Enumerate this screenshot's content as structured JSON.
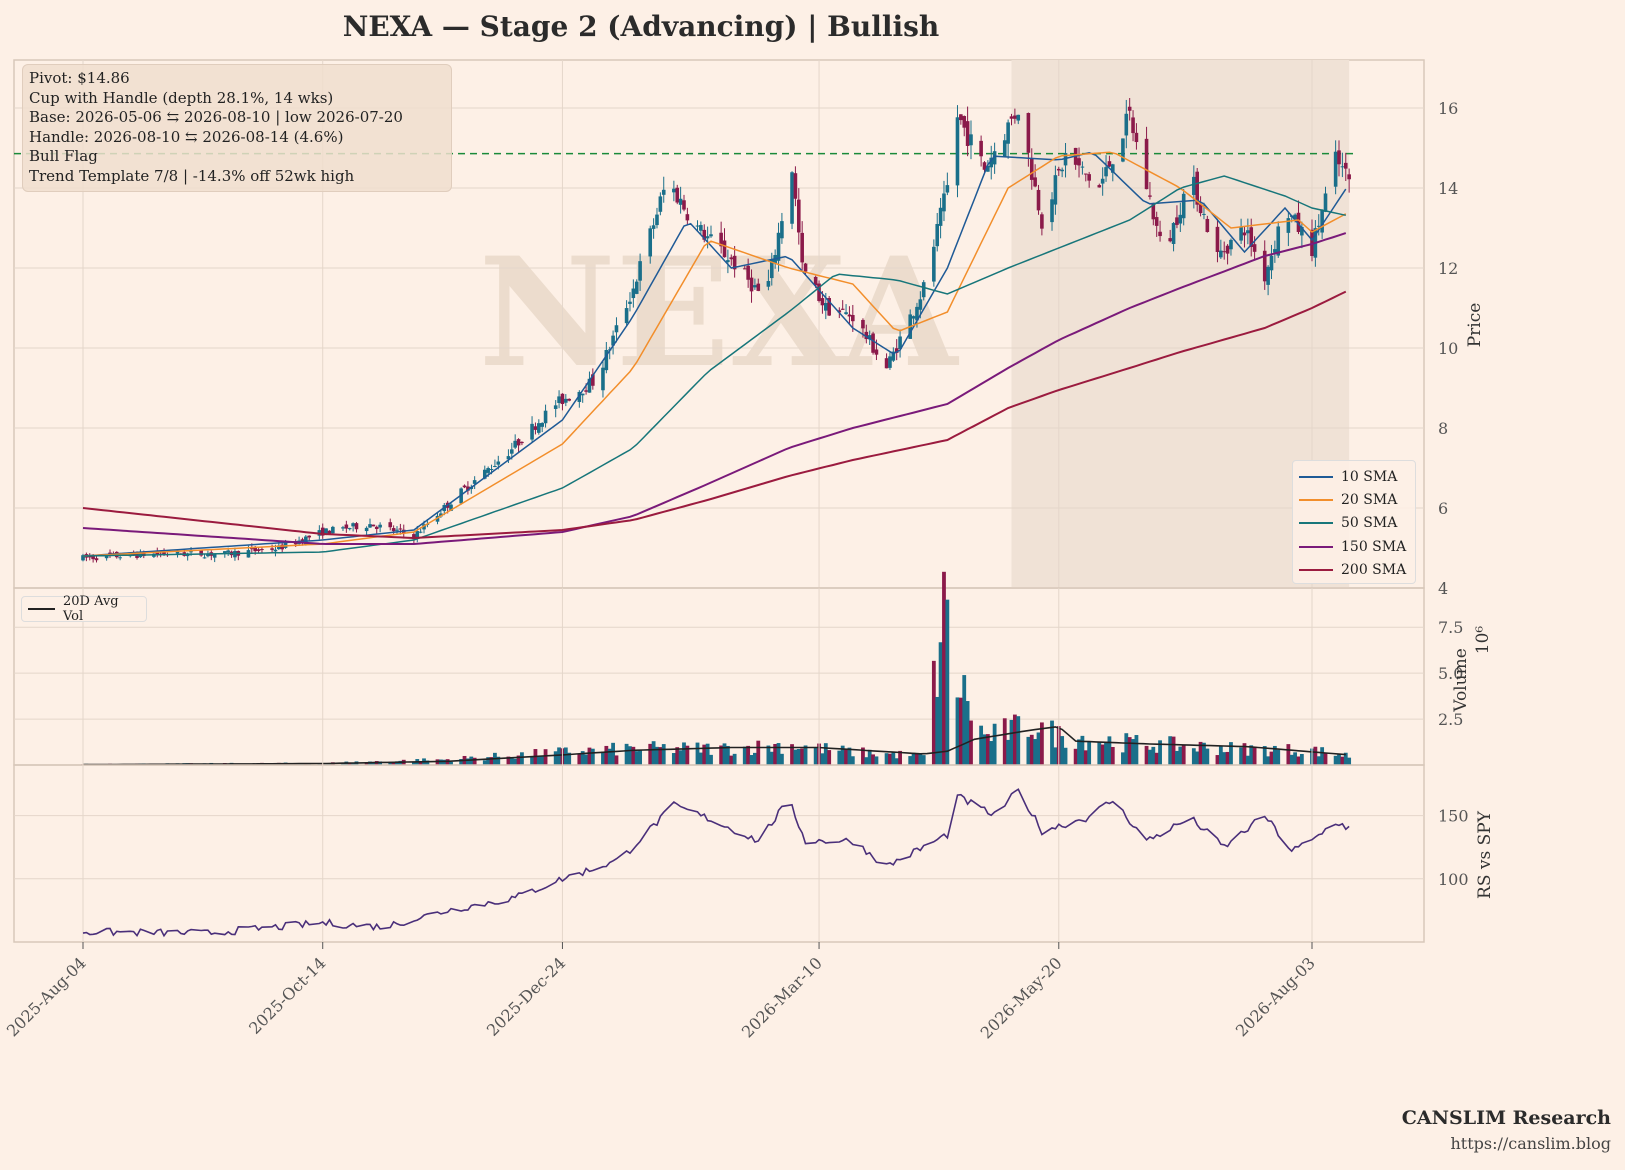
{
  "title": "NEXA  —  Stage 2 (Advancing)  |  Bullish",
  "annotation": {
    "lines": [
      "Pivot: $14.86",
      "Cup with Handle  (depth 28.1%, 14 wks)",
      "Base: 2026-05-06 ⇆ 2026-08-10  |  low 2026-07-20",
      "Handle: 2026-08-10 ⇆ 2026-08-14 (4.6%)",
      "Bull Flag",
      "Trend Template 7/8  |  -14.3% off 52wk high"
    ]
  },
  "legend": {
    "items": [
      {
        "label": "10 SMA",
        "color": "#1f5a96"
      },
      {
        "label": "20 SMA",
        "color": "#f28e2b"
      },
      {
        "label": "50 SMA",
        "color": "#17767a"
      },
      {
        "label": "150 SMA",
        "color": "#7a1a7a"
      },
      {
        "label": "200 SMA",
        "color": "#9b1b3f"
      }
    ]
  },
  "volume_legend": {
    "label": "20D Avg Vol"
  },
  "branding": {
    "name": "CANSLIM Research",
    "url": "https://canslim.blog"
  },
  "colors": {
    "background": "#fdf0e6",
    "up_candle": "#1a6f8a",
    "down_candle": "#8b1a4a",
    "pivot_line": "#1a8a3a",
    "rs_line": "#4a2f7a",
    "base_shade": "#f0e2d6",
    "watermark": "#ecdccd"
  },
  "chart_data": {
    "type": "candlestick",
    "ticker": "NEXA",
    "watermark": "NEXA",
    "x_dates": [
      "2025-Aug-04",
      "2025-Oct-14",
      "2025-Dec-24",
      "2026-Mar-10",
      "2026-May-20",
      "2026-Aug-03"
    ],
    "x_tick_labels": [
      "2025-Aug-04",
      "2025-Oct-14",
      "2025-Dec-24",
      "2026-Mar-10",
      "2026-May-20",
      "2026-Aug-03"
    ],
    "price_panel": {
      "ylabel": "Price",
      "ylim": [
        4,
        17.2
      ],
      "yticks": [
        4,
        6,
        8,
        10,
        12,
        14,
        16
      ],
      "pivot": 14.86,
      "base_shade": [
        "2026-05-06",
        "2026-08-14"
      ],
      "close_keypoints": [
        [
          "2025-08-04",
          4.75
        ],
        [
          "2025-08-25",
          4.85
        ],
        [
          "2025-09-15",
          4.85
        ],
        [
          "2025-10-01",
          5.0
        ],
        [
          "2025-10-14",
          5.4
        ],
        [
          "2025-10-28",
          5.6
        ],
        [
          "2025-11-10",
          5.3
        ],
        [
          "2025-11-24",
          6.4
        ],
        [
          "2025-12-08",
          7.4
        ],
        [
          "2025-12-22",
          8.6
        ],
        [
          "2026-01-03",
          9.2
        ],
        [
          "2026-01-14",
          11.5
        ],
        [
          "2026-01-24",
          14.2
        ],
        [
          "2026-02-02",
          13.0
        ],
        [
          "2026-02-12",
          12.2
        ],
        [
          "2026-02-22",
          11.2
        ],
        [
          "2026-03-02",
          14.5
        ],
        [
          "2026-03-05",
          12.0
        ],
        [
          "2026-03-12",
          11.0
        ],
        [
          "2026-03-20",
          10.8
        ],
        [
          "2026-03-30",
          9.5
        ],
        [
          "2026-04-10",
          11.5
        ],
        [
          "2026-04-17",
          14.0
        ],
        [
          "2026-04-20",
          15.8
        ],
        [
          "2026-04-28",
          14.5
        ],
        [
          "2026-05-08",
          16.0
        ],
        [
          "2026-05-15",
          13.2
        ],
        [
          "2026-05-22",
          14.8
        ],
        [
          "2026-06-01",
          14.0
        ],
        [
          "2026-06-10",
          15.8
        ],
        [
          "2026-06-20",
          12.3
        ],
        [
          "2026-06-28",
          14.3
        ],
        [
          "2026-07-06",
          12.3
        ],
        [
          "2026-07-14",
          13.0
        ],
        [
          "2026-07-20",
          11.8
        ],
        [
          "2026-07-26",
          13.5
        ],
        [
          "2026-08-03",
          12.5
        ],
        [
          "2026-08-10",
          14.7
        ],
        [
          "2026-08-14",
          14.2
        ]
      ],
      "sma": {
        "10 SMA": [
          [
            "2025-08-04",
            4.8
          ],
          [
            "2025-10-14",
            5.2
          ],
          [
            "2025-11-10",
            5.45
          ],
          [
            "2025-12-24",
            8.2
          ],
          [
            "2026-01-14",
            10.8
          ],
          [
            "2026-01-30",
            13.2
          ],
          [
            "2026-02-12",
            12.0
          ],
          [
            "2026-03-01",
            12.3
          ],
          [
            "2026-03-20",
            10.5
          ],
          [
            "2026-04-02",
            9.8
          ],
          [
            "2026-04-17",
            12.0
          ],
          [
            "2026-04-30",
            14.8
          ],
          [
            "2026-05-20",
            14.7
          ],
          [
            "2026-05-30",
            14.9
          ],
          [
            "2026-06-15",
            13.6
          ],
          [
            "2026-07-01",
            13.7
          ],
          [
            "2026-07-14",
            12.4
          ],
          [
            "2026-07-26",
            13.5
          ],
          [
            "2026-08-03",
            12.7
          ],
          [
            "2026-08-14",
            14.1
          ]
        ],
        "20 SMA": [
          [
            "2025-08-04",
            4.8
          ],
          [
            "2025-10-14",
            5.1
          ],
          [
            "2025-11-10",
            5.4
          ],
          [
            "2025-12-24",
            7.6
          ],
          [
            "2026-01-14",
            9.5
          ],
          [
            "2026-02-05",
            12.7
          ],
          [
            "2026-03-01",
            12.0
          ],
          [
            "2026-03-20",
            11.6
          ],
          [
            "2026-04-02",
            10.4
          ],
          [
            "2026-04-17",
            10.9
          ],
          [
            "2026-05-05",
            14.0
          ],
          [
            "2026-05-20",
            14.8
          ],
          [
            "2026-06-05",
            14.9
          ],
          [
            "2026-06-25",
            14.0
          ],
          [
            "2026-07-10",
            13.0
          ],
          [
            "2026-07-30",
            13.2
          ],
          [
            "2026-08-03",
            12.9
          ],
          [
            "2026-08-14",
            13.4
          ]
        ],
        "50 SMA": [
          [
            "2025-08-04",
            4.8
          ],
          [
            "2025-10-14",
            4.9
          ],
          [
            "2025-11-10",
            5.2
          ],
          [
            "2025-12-24",
            6.5
          ],
          [
            "2026-01-14",
            7.5
          ],
          [
            "2026-02-05",
            9.4
          ],
          [
            "2026-03-01",
            10.9
          ],
          [
            "2026-03-15",
            11.85
          ],
          [
            "2026-04-02",
            11.7
          ],
          [
            "2026-04-17",
            11.35
          ],
          [
            "2026-05-05",
            12.0
          ],
          [
            "2026-05-20",
            12.5
          ],
          [
            "2026-06-10",
            13.2
          ],
          [
            "2026-06-25",
            14.0
          ],
          [
            "2026-07-08",
            14.3
          ],
          [
            "2026-07-26",
            13.8
          ],
          [
            "2026-08-03",
            13.5
          ],
          [
            "2026-08-14",
            13.3
          ]
        ],
        "150 SMA": [
          [
            "2025-08-04",
            5.5
          ],
          [
            "2025-10-14",
            5.1
          ],
          [
            "2025-11-10",
            5.1
          ],
          [
            "2025-12-24",
            5.4
          ],
          [
            "2026-01-14",
            5.8
          ],
          [
            "2026-02-05",
            6.6
          ],
          [
            "2026-03-01",
            7.5
          ],
          [
            "2026-03-20",
            8.0
          ],
          [
            "2026-04-17",
            8.6
          ],
          [
            "2026-05-05",
            9.5
          ],
          [
            "2026-05-20",
            10.2
          ],
          [
            "2026-06-10",
            11.0
          ],
          [
            "2026-06-25",
            11.5
          ],
          [
            "2026-07-20",
            12.3
          ],
          [
            "2026-08-03",
            12.6
          ],
          [
            "2026-08-14",
            12.9
          ]
        ],
        "200 SMA": [
          [
            "2025-08-04",
            6.0
          ],
          [
            "2025-10-14",
            5.35
          ],
          [
            "2025-11-10",
            5.25
          ],
          [
            "2025-12-24",
            5.45
          ],
          [
            "2026-01-14",
            5.7
          ],
          [
            "2026-02-05",
            6.2
          ],
          [
            "2026-03-01",
            6.8
          ],
          [
            "2026-03-20",
            7.2
          ],
          [
            "2026-04-17",
            7.7
          ],
          [
            "2026-05-05",
            8.5
          ],
          [
            "2026-05-20",
            8.95
          ],
          [
            "2026-06-10",
            9.5
          ],
          [
            "2026-06-25",
            9.9
          ],
          [
            "2026-07-20",
            10.5
          ],
          [
            "2026-08-03",
            11.0
          ],
          [
            "2026-08-14",
            11.45
          ]
        ]
      }
    },
    "volume_panel": {
      "ylabel": "Volume",
      "exponent_label": "10⁶",
      "ylim": [
        0,
        9.2
      ],
      "yticks": [
        2.5,
        5.0,
        7.5
      ],
      "ytick_labels": [
        "2.5",
        "5.0",
        "7.5"
      ],
      "volume_keypoints": [
        [
          "2025-08-04",
          0.05
        ],
        [
          "2025-10-14",
          0.1
        ],
        [
          "2025-11-20",
          0.3
        ],
        [
          "2025-12-24",
          0.7
        ],
        [
          "2026-01-14",
          0.9
        ],
        [
          "2026-02-12",
          0.9
        ],
        [
          "2026-03-01",
          1.1
        ],
        [
          "2026-03-20",
          0.7
        ],
        [
          "2026-04-10",
          0.5
        ],
        [
          "2026-04-17",
          9.2
        ],
        [
          "2026-04-20",
          4.6
        ],
        [
          "2026-04-28",
          1.5
        ],
        [
          "2026-05-12",
          2.2
        ],
        [
          "2026-05-20",
          1.6
        ],
        [
          "2026-06-10",
          1.2
        ],
        [
          "2026-07-10",
          0.9
        ],
        [
          "2026-08-03",
          0.8
        ],
        [
          "2026-08-14",
          0.5
        ]
      ],
      "avg_keypoints": [
        [
          "2025-08-04",
          0.02
        ],
        [
          "2025-10-14",
          0.08
        ],
        [
          "2025-11-20",
          0.2
        ],
        [
          "2025-12-24",
          0.55
        ],
        [
          "2026-01-14",
          0.8
        ],
        [
          "2026-02-12",
          0.95
        ],
        [
          "2026-03-10",
          0.95
        ],
        [
          "2026-04-10",
          0.6
        ],
        [
          "2026-04-17",
          0.75
        ],
        [
          "2026-04-25",
          1.4
        ],
        [
          "2026-05-10",
          1.85
        ],
        [
          "2026-05-20",
          2.1
        ],
        [
          "2026-05-25",
          1.3
        ],
        [
          "2026-06-15",
          1.15
        ],
        [
          "2026-07-15",
          1.0
        ],
        [
          "2026-08-14",
          0.55
        ]
      ]
    },
    "rs_panel": {
      "ylabel": "RS vs SPY",
      "ylim": [
        50,
        190
      ],
      "yticks": [
        100,
        150
      ],
      "rs_keypoints": [
        [
          "2025-08-04",
          58
        ],
        [
          "2025-09-10",
          57
        ],
        [
          "2025-10-14",
          65
        ],
        [
          "2025-11-01",
          62
        ],
        [
          "2025-11-20",
          75
        ],
        [
          "2025-12-10",
          85
        ],
        [
          "2025-12-24",
          100
        ],
        [
          "2026-01-10",
          115
        ],
        [
          "2026-01-26",
          158
        ],
        [
          "2026-02-05",
          148
        ],
        [
          "2026-02-20",
          130
        ],
        [
          "2026-03-01",
          162
        ],
        [
          "2026-03-06",
          130
        ],
        [
          "2026-03-20",
          130
        ],
        [
          "2026-03-30",
          110
        ],
        [
          "2026-04-10",
          125
        ],
        [
          "2026-04-17",
          135
        ],
        [
          "2026-04-20",
          165
        ],
        [
          "2026-05-01",
          150
        ],
        [
          "2026-05-08",
          170
        ],
        [
          "2026-05-15",
          138
        ],
        [
          "2026-05-28",
          148
        ],
        [
          "2026-06-05",
          162
        ],
        [
          "2026-06-15",
          130
        ],
        [
          "2026-06-28",
          148
        ],
        [
          "2026-07-08",
          125
        ],
        [
          "2026-07-20",
          150
        ],
        [
          "2026-07-28",
          122
        ],
        [
          "2026-08-03",
          130
        ],
        [
          "2026-08-10",
          145
        ],
        [
          "2026-08-14",
          140
        ]
      ]
    }
  }
}
